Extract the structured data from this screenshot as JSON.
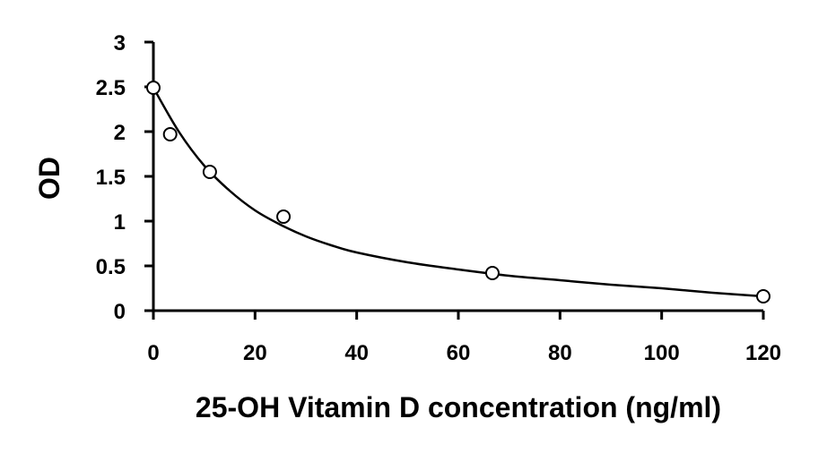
{
  "chart_data": {
    "type": "scatter",
    "title": "",
    "xlabel": "25-OH Vitamin D concentration (ng/ml)",
    "ylabel": "OD",
    "xlim": [
      0,
      120
    ],
    "ylim": [
      0,
      3
    ],
    "x_ticks": [
      "0",
      "20",
      "40",
      "60",
      "80",
      "100",
      "120"
    ],
    "y_ticks": [
      "0",
      "0.5",
      "1",
      "1.5",
      "2",
      "2.5",
      "3"
    ],
    "grid": false,
    "legend": "none",
    "series": [
      {
        "marker": "open-circle",
        "x": [
          0,
          3.3,
          11.1,
          25.6,
          66.7,
          120
        ],
        "y": [
          2.49,
          1.97,
          1.55,
          1.05,
          0.42,
          0.16
        ]
      }
    ],
    "fit_curve": {
      "x": [
        0,
        5,
        10,
        15,
        20,
        25,
        30,
        35,
        40,
        50,
        60,
        70,
        80,
        90,
        100,
        110,
        120
      ],
      "y": [
        2.49,
        2.0,
        1.62,
        1.34,
        1.12,
        0.96,
        0.83,
        0.73,
        0.65,
        0.54,
        0.46,
        0.39,
        0.34,
        0.29,
        0.25,
        0.2,
        0.16
      ]
    },
    "colors": {
      "axis": "#000000",
      "marker": "#000000",
      "curve": "#000000"
    }
  }
}
